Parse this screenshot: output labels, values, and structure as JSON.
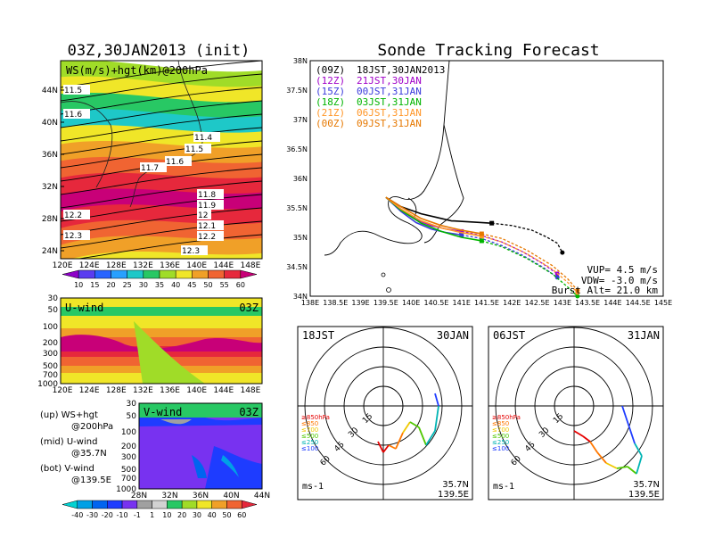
{
  "left_title": "03Z,30JAN2013 (init)",
  "right_title": "Sonde Tracking Forecast",
  "map_panel": {
    "label": "WS(m/s)+hgt(km)@200hPa",
    "lat_ticks": [
      "44N",
      "40N",
      "36N",
      "32N",
      "28N",
      "24N"
    ],
    "lon_ticks": [
      "120E",
      "124E",
      "128E",
      "132E",
      "136E",
      "140E",
      "144E",
      "148E"
    ],
    "contour_labels": [
      "11.5",
      "11.6",
      "11.4",
      "11.5",
      "11.7",
      "11.6",
      "11.8",
      "11.9",
      "12",
      "12.1",
      "12.2",
      "12.3",
      "12.3",
      "12.2"
    ],
    "colorbar_ticks": [
      "10",
      "15",
      "20",
      "25",
      "30",
      "35",
      "40",
      "45",
      "50",
      "55",
      "60"
    ],
    "colorbar_colors": [
      "#8e00c8",
      "#5a3cf0",
      "#2864ff",
      "#28a0ff",
      "#1ec8c8",
      "#28c864",
      "#a0dc28",
      "#f0e628",
      "#f0a028",
      "#f06432",
      "#e6283c",
      "#c80078"
    ]
  },
  "uwind_panel": {
    "title": "U-wind",
    "time": "03Z",
    "p_ticks": [
      "30",
      "50",
      "100",
      "200",
      "300",
      "500",
      "700",
      "1000"
    ],
    "lon_ticks": [
      "120E",
      "124E",
      "128E",
      "132E",
      "136E",
      "140E",
      "144E",
      "148E"
    ]
  },
  "notes": {
    "up": "(up) WS+hgt",
    "up2": "@200hPa",
    "mid": "(mid) U-wind",
    "mid2": "@35.7N",
    "bot": "(bot) V-wind",
    "bot2": "@139.5E"
  },
  "vwind_panel": {
    "title": "V-wind",
    "time": "03Z",
    "p_ticks": [
      "30",
      "50",
      "100",
      "200",
      "300",
      "500",
      "700",
      "1000"
    ],
    "lat_ticks": [
      "28N",
      "32N",
      "36N",
      "40N",
      "44N"
    ],
    "colorbar_ticks": [
      "-40",
      "-30",
      "-20",
      "-10",
      "-1",
      "1",
      "10",
      "20",
      "30",
      "40",
      "50",
      "60"
    ],
    "colorbar_colors": [
      "#00d2d2",
      "#00a0e6",
      "#0064f0",
      "#1e3cff",
      "#7832f0",
      "#a0a0a0",
      "#d2d2d2",
      "#28c864",
      "#a0dc28",
      "#f0e628",
      "#f0a028",
      "#f06432",
      "#e6283c"
    ]
  },
  "track_panel": {
    "lat_ticks": [
      "38N",
      "37.5N",
      "37N",
      "36.5N",
      "36N",
      "35.5N",
      "35N",
      "34.5N",
      "34N"
    ],
    "lon_ticks": [
      "138E",
      "138.5E",
      "139E",
      "139.5E",
      "140E",
      "140.5E",
      "141E",
      "141.5E",
      "142E",
      "142.5E",
      "143E",
      "143.5E",
      "144E",
      "144.5E",
      "145E"
    ],
    "launches": [
      {
        "code": "(09Z)",
        "time": "18JST,30JAN2013",
        "color": "#000000"
      },
      {
        "code": "(12Z)",
        "time": "21JST,30JAN",
        "color": "#a000c8"
      },
      {
        "code": "(15Z)",
        "time": "00JST,31JAN",
        "color": "#3c3cdc"
      },
      {
        "code": "(18Z)",
        "time": "03JST,31JAN",
        "color": "#00b400"
      },
      {
        "code": "(21Z)",
        "time": "06JST,31JAN",
        "color": "#ff9628"
      },
      {
        "code": "(00Z)",
        "time": "09JST,31JAN",
        "color": "#e67800"
      }
    ],
    "params": {
      "vup": "VUP= 4.5 m/s",
      "vdw": "VDW= -3.0 m/s",
      "burst": "Burst Alt= 21.0 km"
    }
  },
  "hodographs": [
    {
      "time": "18JST",
      "date": "30JAN",
      "lat": "35.7N",
      "lon": "139.5E",
      "units": "ms-1",
      "ring_labels": [
        "15",
        "30",
        "45",
        "60"
      ],
      "levels": [
        "≥850hPa",
        "≤850",
        "≤700",
        "≤500",
        "≤250",
        "≤100"
      ],
      "level_colors": [
        "#e60000",
        "#ff7800",
        "#f0c800",
        "#50c800",
        "#00b4b4",
        "#1e3cff"
      ]
    },
    {
      "time": "06JST",
      "date": "31JAN",
      "lat": "35.7N",
      "lon": "139.5E",
      "units": "ms-1",
      "ring_labels": [
        "15",
        "30",
        "45",
        "60"
      ],
      "levels": [
        "≥850hPa",
        "≤850",
        "≤700",
        "≤500",
        "≤250",
        "≤100"
      ],
      "level_colors": [
        "#e60000",
        "#ff7800",
        "#f0c800",
        "#50c800",
        "#00b4b4",
        "#1e3cff"
      ]
    }
  ],
  "chart_data": [
    {
      "type": "heatmap",
      "title": "WS(m/s)+hgt(km)@200hPa",
      "xlabel": "",
      "ylabel": "",
      "xlim": [
        "120E",
        "150E"
      ],
      "ylim": [
        "22N",
        "47N"
      ],
      "contours_km": [
        11.4,
        11.5,
        11.6,
        11.7,
        11.8,
        11.9,
        12.0,
        12.1,
        12.2,
        12.3
      ]
    },
    {
      "type": "heatmap",
      "title": "U-wind",
      "xlabel": "",
      "ylabel": "",
      "ylim": [
        1000,
        30
      ]
    },
    {
      "type": "heatmap",
      "title": "V-wind",
      "xlabel": "",
      "ylabel": "",
      "ylim": [
        1000,
        30
      ]
    },
    {
      "type": "line",
      "title": "Sonde Tracking Forecast",
      "xlim": [
        138,
        145
      ],
      "ylim": [
        34,
        38
      ],
      "series": [
        {
          "name": "(09Z) 18JST,30JAN2013",
          "x": [
            139.5,
            139.8,
            140.2,
            140.5,
            140.8,
            141.2,
            141.6,
            142.0,
            142.4,
            142.7,
            142.9,
            143.0
          ],
          "y": [
            35.68,
            35.52,
            35.4,
            35.34,
            35.28,
            35.26,
            35.24,
            35.2,
            35.12,
            35.0,
            34.9,
            34.74
          ]
        },
        {
          "name": "(12Z) 21JST,30JAN",
          "x": [
            139.5,
            139.8,
            140.1,
            140.4,
            140.7,
            141.0,
            141.4,
            141.8,
            142.2,
            142.6,
            142.9
          ],
          "y": [
            35.68,
            35.48,
            35.3,
            35.2,
            35.14,
            35.1,
            35.03,
            34.92,
            34.76,
            34.56,
            34.38
          ]
        },
        {
          "name": "(15Z) 00JST,31JAN",
          "x": [
            139.5,
            139.8,
            140.1,
            140.4,
            140.7,
            141.0,
            141.4,
            141.8,
            142.2,
            142.6,
            142.9
          ],
          "y": [
            35.68,
            35.44,
            35.25,
            35.14,
            35.08,
            35.04,
            34.98,
            34.86,
            34.7,
            34.5,
            34.32
          ]
        },
        {
          "name": "(18Z) 03JST,31JAN",
          "x": [
            139.5,
            139.8,
            140.2,
            140.6,
            141.0,
            141.4,
            141.8,
            142.3,
            142.8,
            143.1,
            143.3
          ],
          "y": [
            35.68,
            35.46,
            35.24,
            35.1,
            35.0,
            34.94,
            34.84,
            34.64,
            34.38,
            34.16,
            34.0
          ]
        },
        {
          "name": "(21Z) 06JST,31JAN",
          "x": [
            139.5,
            139.8,
            140.2,
            140.6,
            141.0,
            141.4,
            141.8,
            142.3,
            142.8,
            143.1,
            143.3
          ],
          "y": [
            35.68,
            35.48,
            35.28,
            35.16,
            35.08,
            35.02,
            34.92,
            34.72,
            34.46,
            34.24,
            34.06
          ]
        },
        {
          "name": "(00Z) 09JST,31JAN",
          "x": [
            139.5,
            139.8,
            140.2,
            140.6,
            141.0,
            141.4,
            141.8,
            142.3,
            142.8,
            143.1,
            143.3
          ],
          "y": [
            35.68,
            35.52,
            35.32,
            35.2,
            35.12,
            35.06,
            34.98,
            34.78,
            34.52,
            34.3,
            34.1
          ]
        }
      ]
    }
  ]
}
